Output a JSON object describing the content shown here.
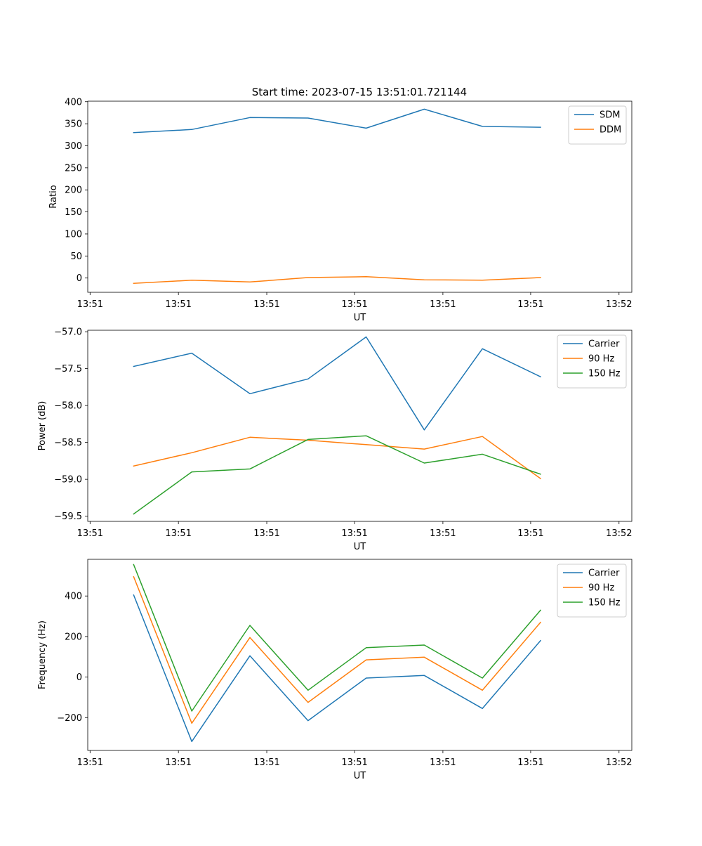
{
  "title": "Start time: 2023-07-15 13:51:01.721144",
  "chart_data": [
    {
      "type": "line",
      "xlabel": "UT",
      "ylabel": "Ratio",
      "x": [
        0,
        1,
        2,
        3,
        4,
        5,
        6,
        7
      ],
      "xlim": [
        -0.79,
        8.57
      ],
      "xticks": [
        -0.75,
        0.77,
        2.29,
        3.8,
        5.32,
        6.83,
        8.35
      ],
      "xtick_labels": [
        "13:51",
        "13:51",
        "13:51",
        "13:51",
        "13:51",
        "13:51",
        "13:52"
      ],
      "ylim": [
        -32.4,
        401.2
      ],
      "yticks": [
        0,
        50,
        100,
        150,
        200,
        250,
        300,
        350,
        400
      ],
      "ytick_labels": [
        "0",
        "50",
        "100",
        "150",
        "200",
        "250",
        "300",
        "350",
        "400"
      ],
      "legend_position": "top-right",
      "series": [
        {
          "name": "SDM",
          "color": "#1f77b4",
          "values": [
            330,
            337,
            364,
            363,
            340,
            383,
            344,
            342
          ]
        },
        {
          "name": "DDM",
          "color": "#ff7f0e",
          "values": [
            -12,
            -5,
            -9,
            1,
            3,
            -4,
            -5,
            1
          ]
        }
      ]
    },
    {
      "type": "line",
      "xlabel": "UT",
      "ylabel": "Power (dB)",
      "x": [
        0,
        1,
        2,
        3,
        4,
        5,
        6,
        7
      ],
      "xlim": [
        -0.79,
        8.57
      ],
      "xticks": [
        -0.75,
        0.77,
        2.29,
        3.8,
        5.32,
        6.83,
        8.35
      ],
      "xtick_labels": [
        "13:51",
        "13:51",
        "13:51",
        "13:51",
        "13:51",
        "13:51",
        "13:52"
      ],
      "ylim": [
        -59.57,
        -56.98
      ],
      "yticks": [
        -59.5,
        -59.0,
        -58.5,
        -58.0,
        -57.5,
        -57.0
      ],
      "ytick_labels": [
        "−59.5",
        "−59.0",
        "−58.5",
        "−58.0",
        "−57.5",
        "−57.0"
      ],
      "legend_position": "top-right",
      "series": [
        {
          "name": "Carrier",
          "color": "#1f77b4",
          "values": [
            -57.47,
            -57.29,
            -57.84,
            -57.64,
            -57.07,
            -58.33,
            -57.23,
            -57.61
          ]
        },
        {
          "name": "90 Hz",
          "color": "#ff7f0e",
          "values": [
            -58.82,
            -58.64,
            -58.43,
            -58.47,
            -58.53,
            -58.59,
            -58.42,
            -58.99
          ]
        },
        {
          "name": "150 Hz",
          "color": "#2ca02c",
          "values": [
            -59.47,
            -58.9,
            -58.86,
            -58.46,
            -58.41,
            -58.78,
            -58.66,
            -58.93
          ]
        }
      ]
    },
    {
      "type": "line",
      "xlabel": "UT",
      "ylabel": "Frequency (Hz)",
      "x": [
        0,
        1,
        2,
        3,
        4,
        5,
        6,
        7
      ],
      "xlim": [
        -0.79,
        8.57
      ],
      "xticks": [
        -0.75,
        0.77,
        2.29,
        3.8,
        5.32,
        6.83,
        8.35
      ],
      "xtick_labels": [
        "13:51",
        "13:51",
        "13:51",
        "13:51",
        "13:51",
        "13:51",
        "13:52"
      ],
      "ylim": [
        -362,
        581
      ],
      "yticks": [
        -200,
        0,
        200,
        400
      ],
      "ytick_labels": [
        "−200",
        "0",
        "200",
        "400"
      ],
      "legend_position": "top-right",
      "series": [
        {
          "name": "Carrier",
          "color": "#1f77b4",
          "values": [
            405,
            -318,
            105,
            -215,
            -5,
            8,
            -155,
            180
          ]
        },
        {
          "name": "90 Hz",
          "color": "#ff7f0e",
          "values": [
            495,
            -228,
            195,
            -125,
            85,
            98,
            -65,
            270
          ]
        },
        {
          "name": "150 Hz",
          "color": "#2ca02c",
          "values": [
            555,
            -168,
            255,
            -65,
            145,
            158,
            -5,
            330
          ]
        }
      ]
    }
  ]
}
